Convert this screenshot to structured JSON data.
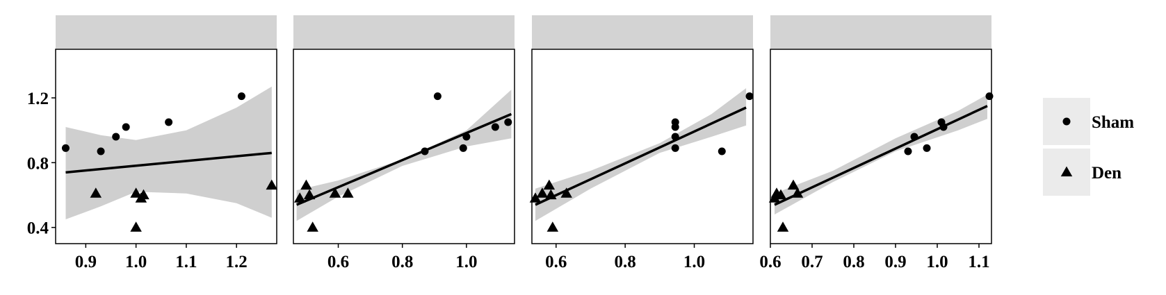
{
  "chart_data": {
    "type": "scatter",
    "layout": "faceted",
    "y_axis": {
      "ylim": [
        0.3,
        1.5
      ],
      "ticks": [
        0.4,
        0.8,
        1.2
      ],
      "tick_labels": [
        "0.4",
        "0.8",
        "1.2"
      ]
    },
    "legend": {
      "placement": "right",
      "entries": [
        {
          "label": "Sham",
          "shape": "circle"
        },
        {
          "label": "Den",
          "shape": "triangle"
        }
      ]
    },
    "colors": {
      "strip": "#d3d3d3",
      "ribbon": "#cccccc",
      "point": "#000000",
      "legend_key_bg": "#ebebeb"
    },
    "panels": [
      {
        "strip_label": "",
        "xlim": [
          0.84,
          1.28
        ],
        "x_ticks": [
          0.9,
          1.0,
          1.1,
          1.2
        ],
        "x_tick_labels": [
          "0.9",
          "1.0",
          "1.1",
          "1.2"
        ],
        "fit_line": [
          [
            0.86,
            0.74
          ],
          [
            1.27,
            0.86
          ]
        ],
        "ribbon_upper": [
          [
            0.86,
            1.02
          ],
          [
            0.93,
            0.97
          ],
          [
            1.0,
            0.94
          ],
          [
            1.1,
            1.0
          ],
          [
            1.2,
            1.14
          ],
          [
            1.27,
            1.27
          ]
        ],
        "ribbon_lower": [
          [
            0.86,
            0.45
          ],
          [
            0.93,
            0.53
          ],
          [
            1.0,
            0.62
          ],
          [
            1.1,
            0.61
          ],
          [
            1.2,
            0.55
          ],
          [
            1.27,
            0.46
          ]
        ],
        "series": [
          {
            "name": "Sham",
            "points": [
              [
                0.86,
                0.89
              ],
              [
                0.93,
                0.87
              ],
              [
                0.96,
                0.96
              ],
              [
                0.98,
                1.02
              ],
              [
                1.065,
                1.05
              ],
              [
                1.21,
                1.21
              ]
            ]
          },
          {
            "name": "Den",
            "points": [
              [
                0.92,
                0.61
              ],
              [
                1.0,
                0.61
              ],
              [
                1.015,
                0.6
              ],
              [
                1.01,
                0.58
              ],
              [
                1.0,
                0.4
              ],
              [
                1.27,
                0.66
              ]
            ]
          }
        ]
      },
      {
        "strip_label": "",
        "xlim": [
          0.46,
          1.15
        ],
        "x_ticks": [
          0.6,
          0.8,
          1.0
        ],
        "x_tick_labels": [
          "0.6",
          "0.8",
          "1.0"
        ],
        "fit_line": [
          [
            0.47,
            0.54
          ],
          [
            1.14,
            1.1
          ]
        ],
        "ribbon_upper": [
          [
            0.47,
            0.63
          ],
          [
            0.6,
            0.69
          ],
          [
            0.8,
            0.82
          ],
          [
            1.0,
            1.0
          ],
          [
            1.14,
            1.25
          ]
        ],
        "ribbon_lower": [
          [
            0.47,
            0.44
          ],
          [
            0.6,
            0.59
          ],
          [
            0.8,
            0.78
          ],
          [
            1.0,
            0.9
          ],
          [
            1.14,
            0.95
          ]
        ],
        "series": [
          {
            "name": "Sham",
            "points": [
              [
                0.91,
                1.21
              ],
              [
                0.87,
                0.87
              ],
              [
                0.99,
                0.89
              ],
              [
                1.0,
                0.96
              ],
              [
                1.09,
                1.02
              ],
              [
                1.13,
                1.05
              ]
            ]
          },
          {
            "name": "Den",
            "points": [
              [
                0.48,
                0.58
              ],
              [
                0.5,
                0.66
              ],
              [
                0.51,
                0.6
              ],
              [
                0.52,
                0.4
              ],
              [
                0.59,
                0.61
              ],
              [
                0.63,
                0.61
              ]
            ]
          }
        ]
      },
      {
        "strip_label": "",
        "xlim": [
          0.53,
          1.17
        ],
        "x_ticks": [
          0.6,
          0.8,
          1.0
        ],
        "x_tick_labels": [
          "0.6",
          "0.8",
          "1.0"
        ],
        "fit_line": [
          [
            0.54,
            0.54
          ],
          [
            1.15,
            1.14
          ]
        ],
        "ribbon_upper": [
          [
            0.54,
            0.64
          ],
          [
            0.7,
            0.75
          ],
          [
            0.9,
            0.92
          ],
          [
            1.05,
            1.1
          ],
          [
            1.15,
            1.26
          ]
        ],
        "ribbon_lower": [
          [
            0.54,
            0.44
          ],
          [
            0.7,
            0.64
          ],
          [
            0.9,
            0.86
          ],
          [
            1.05,
            0.96
          ],
          [
            1.15,
            1.03
          ]
        ],
        "series": [
          {
            "name": "Sham",
            "points": [
              [
                0.945,
                1.05
              ],
              [
                0.945,
                1.02
              ],
              [
                0.945,
                0.96
              ],
              [
                0.945,
                0.89
              ],
              [
                1.08,
                0.87
              ],
              [
                1.16,
                1.21
              ]
            ]
          },
          {
            "name": "Den",
            "points": [
              [
                0.54,
                0.58
              ],
              [
                0.56,
                0.61
              ],
              [
                0.58,
                0.66
              ],
              [
                0.585,
                0.6
              ],
              [
                0.63,
                0.61
              ],
              [
                0.59,
                0.4
              ]
            ]
          }
        ]
      },
      {
        "strip_label": "",
        "xlim": [
          0.6,
          1.13
        ],
        "x_ticks": [
          0.6,
          0.7,
          0.8,
          0.9,
          1.0,
          1.1
        ],
        "x_tick_labels": [
          "0.6",
          "0.7",
          "0.8",
          "0.9",
          "1.0",
          "1.1"
        ],
        "fit_line": [
          [
            0.61,
            0.54
          ],
          [
            1.12,
            1.15
          ]
        ],
        "ribbon_upper": [
          [
            0.61,
            0.61
          ],
          [
            0.75,
            0.75
          ],
          [
            0.9,
            0.95
          ],
          [
            1.05,
            1.12
          ],
          [
            1.12,
            1.22
          ]
        ],
        "ribbon_lower": [
          [
            0.61,
            0.48
          ],
          [
            0.75,
            0.68
          ],
          [
            0.9,
            0.87
          ],
          [
            1.05,
            1.0
          ],
          [
            1.12,
            1.07
          ]
        ],
        "series": [
          {
            "name": "Sham",
            "points": [
              [
                0.93,
                0.87
              ],
              [
                0.945,
                0.96
              ],
              [
                0.975,
                0.89
              ],
              [
                1.01,
                1.05
              ],
              [
                1.015,
                1.02
              ],
              [
                1.125,
                1.21
              ]
            ]
          },
          {
            "name": "Den",
            "points": [
              [
                0.61,
                0.58
              ],
              [
                0.615,
                0.61
              ],
              [
                0.625,
                0.6
              ],
              [
                0.655,
                0.66
              ],
              [
                0.665,
                0.61
              ],
              [
                0.63,
                0.4
              ]
            ]
          }
        ]
      }
    ]
  }
}
